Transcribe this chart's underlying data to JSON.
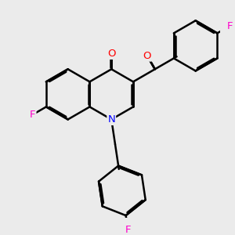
{
  "background_color": "#ebebeb",
  "bond_color": "#000000",
  "bond_width": 1.8,
  "atom_colors": {
    "F": "#ff00cc",
    "O": "#ff0000",
    "N": "#0000ff",
    "C": "#000000"
  },
  "font_size": 9.5,
  "fig_width": 3.0,
  "fig_height": 3.0,
  "dpi": 100
}
